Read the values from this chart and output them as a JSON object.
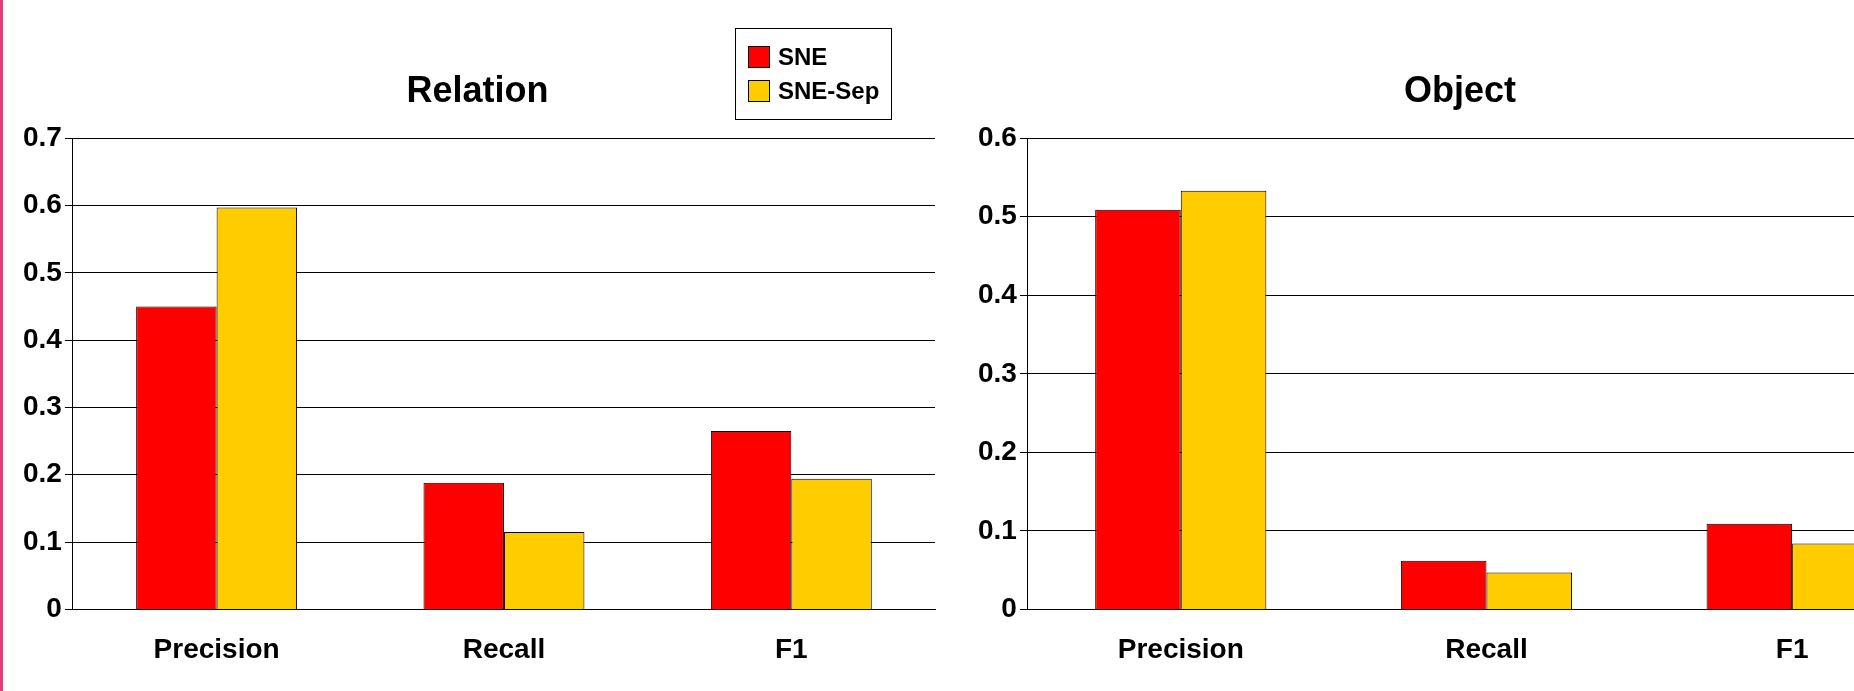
{
  "chart_data": [
    {
      "type": "bar",
      "title": "Relation",
      "categories": [
        "Precision",
        "Recall",
        "F1"
      ],
      "series": [
        {
          "name": "SNE",
          "color": "#ff0000",
          "values": [
            0.45,
            0.188,
            0.265
          ]
        },
        {
          "name": "SNE-Sep",
          "color": "#ffcc00",
          "values": [
            0.597,
            0.115,
            0.194
          ]
        }
      ],
      "ylim": [
        0,
        0.7
      ],
      "yticks": [
        0,
        0.1,
        0.2,
        0.3,
        0.4,
        0.5,
        0.6,
        0.7
      ],
      "grid": "y",
      "legend": "top right"
    },
    {
      "type": "bar",
      "title": "Object",
      "categories": [
        "Precision",
        "Recall",
        "F1"
      ],
      "series": [
        {
          "color": "#ff0000",
          "values": [
            0.509,
            0.062,
            0.109
          ]
        },
        {
          "color": "#ffcc00",
          "values": [
            0.533,
            0.047,
            0.084
          ]
        }
      ],
      "ylim": [
        0,
        0.6
      ],
      "yticks": [
        0,
        0.1,
        0.2,
        0.3,
        0.4,
        0.5,
        0.6
      ],
      "grid": "y"
    }
  ]
}
